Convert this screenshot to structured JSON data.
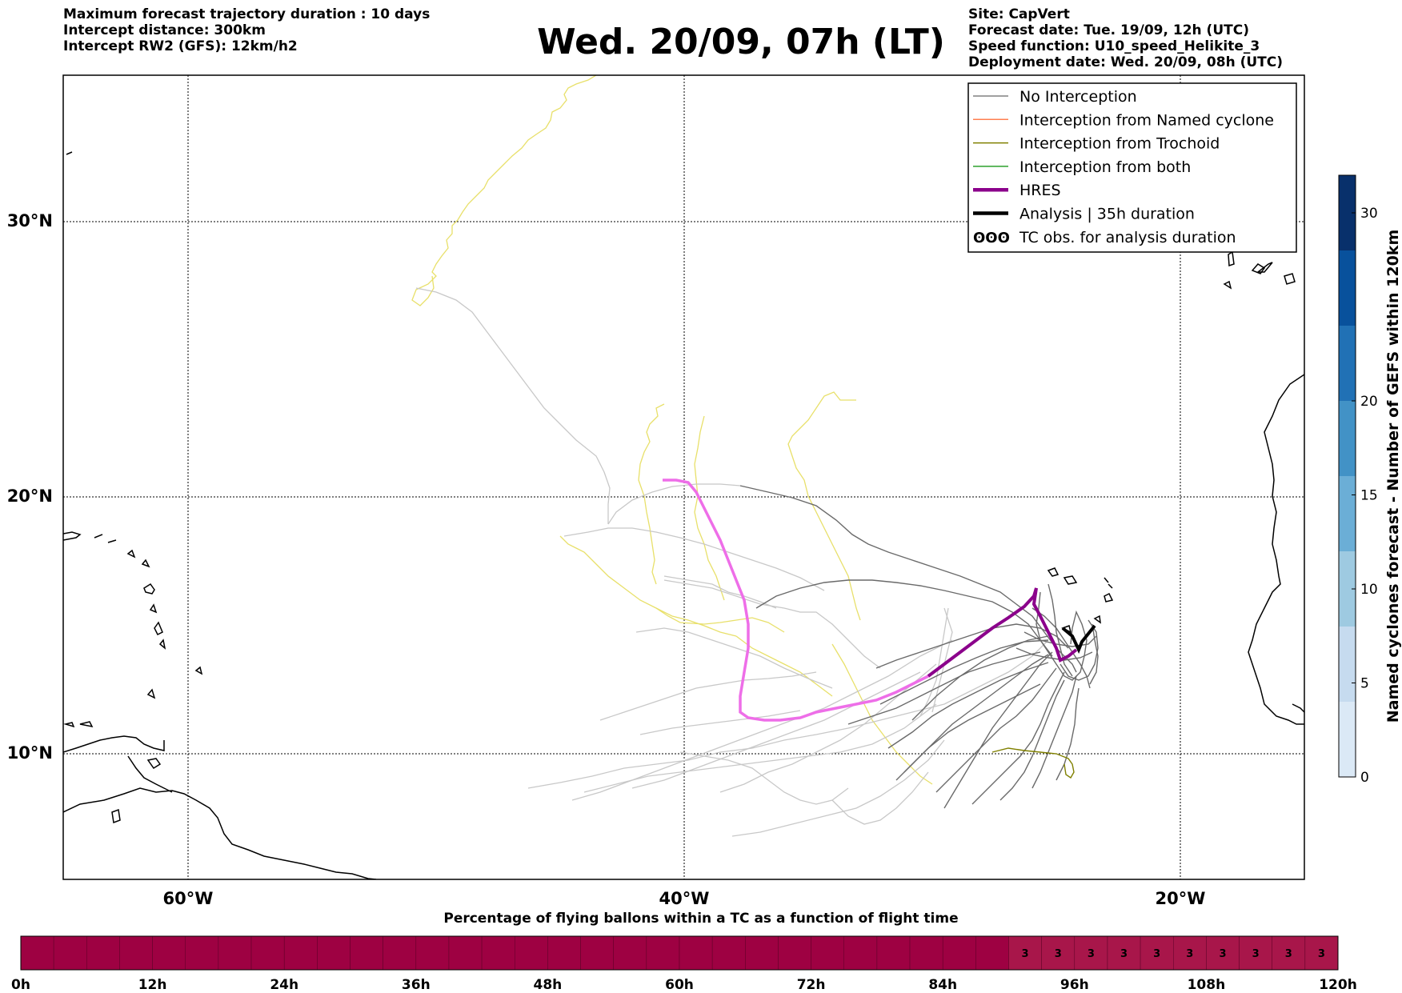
{
  "header_left": [
    "Maximum forecast trajectory duration : 10 days",
    "Intercept distance: 300km",
    "Intercept RW2 (GFS):  12km/h2"
  ],
  "title": "Wed. 20/09, 07h (LT)",
  "header_right": [
    "Site: CapVert",
    "Forecast date: Tue. 19/09, 12h (UTC)",
    "Speed function: U10_speed_Helikite_3",
    "Deployment date: Wed. 20/09, 08h (UTC)"
  ],
  "map": {
    "lat_labels": [
      "30°N",
      "20°N",
      "10°N"
    ],
    "lon_labels": [
      "60°W",
      "40°W",
      "20°W"
    ],
    "lat_range": [
      5.4,
      34.7
    ],
    "lon_range": [
      -65,
      -15
    ]
  },
  "legend": {
    "items": [
      {
        "label": "No Interception",
        "color": "#808080",
        "style": "thin"
      },
      {
        "label": "Interception from Named cyclone",
        "color": "#ff7f50",
        "style": "thin"
      },
      {
        "label": "Interception from Trochoid",
        "color": "#808000",
        "style": "thin"
      },
      {
        "label": "Interception from both",
        "color": "#2ca02c",
        "style": "thin"
      },
      {
        "label": "HRES",
        "color": "#8b008b",
        "style": "thick"
      },
      {
        "label": "Analysis | 35h duration",
        "color": "#000000",
        "style": "thick"
      },
      {
        "label": "TC obs. for analysis duration",
        "color": "#000000",
        "style": "symbol"
      }
    ]
  },
  "colorbar": {
    "label": "Named cyclones forecast - Number of GEFS within 120km",
    "ticks": [
      "0",
      "5",
      "10",
      "15",
      "20",
      "30"
    ],
    "colors": [
      "#dbe9f6",
      "#c6dbef",
      "#9ecae1",
      "#6baed6",
      "#4292c6",
      "#2171b5",
      "#08519c",
      "#08306b"
    ]
  },
  "bottom_bar": {
    "title": "Percentage of flying ballons within a TC as a function of flight time",
    "ticks": [
      "0h",
      "12h",
      "24h",
      "36h",
      "48h",
      "60h",
      "72h",
      "84h",
      "96h",
      "108h",
      "120h"
    ],
    "cell_values": [
      "3",
      "3",
      "3",
      "3",
      "3",
      "3",
      "3",
      "3",
      "3",
      "3"
    ],
    "color_zero": "#9e0142",
    "color_three": "#a8164a"
  }
}
